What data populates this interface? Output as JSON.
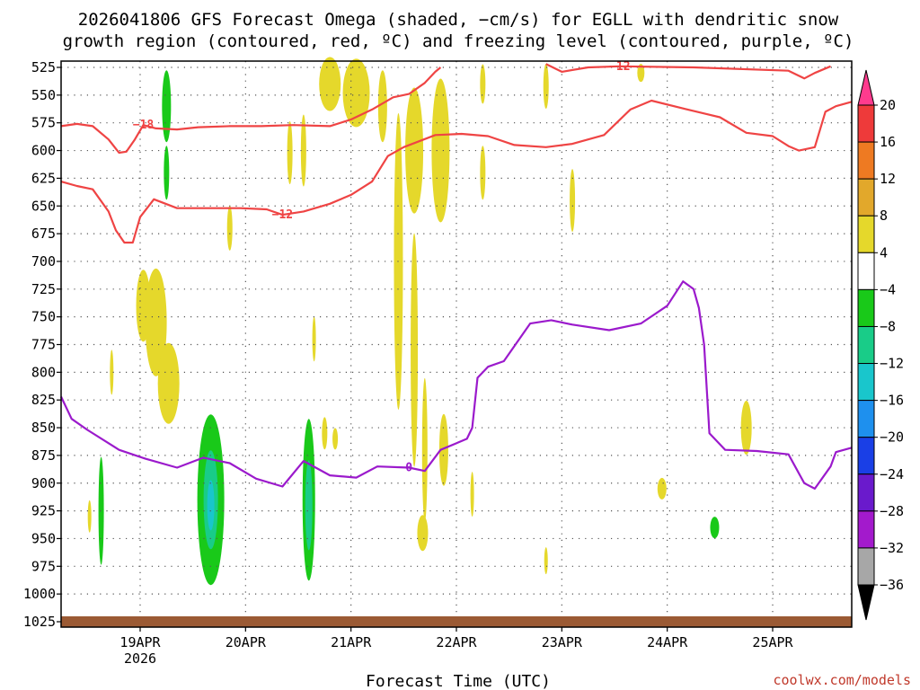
{
  "chart_data": {
    "type": "heatmap",
    "title_line1": "2026041806 GFS Forecast Omega (shaded, −cm/s) for EGLL with dendritic snow",
    "title_line2": "growth region (contoured, red, ºC) and freezing level (contoured, purple, ºC)",
    "xlabel": "Forecast Time (UTC)",
    "credit": "coolwx.com/models",
    "x_ticks": [
      {
        "t": 0.75,
        "label": "19APR"
      },
      {
        "t": 1.75,
        "label": "20APR"
      },
      {
        "t": 2.75,
        "label": "21APR"
      },
      {
        "t": 3.75,
        "label": "22APR"
      },
      {
        "t": 4.75,
        "label": "23APR"
      },
      {
        "t": 5.75,
        "label": "24APR"
      },
      {
        "t": 6.75,
        "label": "25APR"
      }
    ],
    "x_year_label": "2026",
    "xlim": [
      0,
      7.5
    ],
    "y_ticks": [
      525,
      550,
      575,
      600,
      625,
      650,
      675,
      700,
      725,
      750,
      775,
      800,
      825,
      850,
      875,
      900,
      925,
      950,
      975,
      1000,
      1025
    ],
    "ylim": [
      1025,
      525
    ],
    "colorbar": {
      "labels": [
        "20",
        "16",
        "12",
        "8",
        "4",
        "−4",
        "−8",
        "−12",
        "−16",
        "−20",
        "−24",
        "−28",
        "−32",
        "−36"
      ],
      "colors": [
        "#ff3b8e",
        "#ee3a3a",
        "#ee7a22",
        "#e2a82b",
        "#e5d82b",
        "#ffffff",
        "#19c919",
        "#19cc88",
        "#19c6cc",
        "#1e90ee",
        "#1a3fe6",
        "#6a1acc",
        "#a31acc",
        "#a7a7a7",
        "#000000"
      ]
    },
    "contours": [
      {
        "name": "−18 °C",
        "color": "#ef4444",
        "label": "−18",
        "points": [
          [
            0,
            578
          ],
          [
            0.15,
            576
          ],
          [
            0.3,
            578
          ],
          [
            0.45,
            590
          ],
          [
            0.55,
            602
          ],
          [
            0.62,
            601
          ],
          [
            0.7,
            590
          ],
          [
            0.78,
            577
          ],
          [
            0.9,
            580
          ],
          [
            1.1,
            581
          ],
          [
            1.3,
            579
          ],
          [
            1.6,
            578
          ],
          [
            1.9,
            578
          ],
          [
            2.2,
            577
          ],
          [
            2.55,
            578
          ],
          [
            2.75,
            572
          ],
          [
            2.95,
            563
          ],
          [
            3.15,
            552
          ],
          [
            3.3,
            549
          ],
          [
            3.45,
            539
          ],
          [
            3.55,
            529
          ],
          [
            3.6,
            525
          ]
        ]
      },
      {
        "name": "−12 °C lower",
        "color": "#ef4444",
        "label": "−12",
        "points": [
          [
            0,
            628
          ],
          [
            0.15,
            632
          ],
          [
            0.3,
            635
          ],
          [
            0.45,
            655
          ],
          [
            0.52,
            672
          ],
          [
            0.6,
            683
          ],
          [
            0.68,
            683
          ],
          [
            0.75,
            660
          ],
          [
            0.88,
            644
          ],
          [
            1.1,
            652
          ],
          [
            1.4,
            652
          ],
          [
            1.7,
            652
          ],
          [
            1.95,
            653
          ],
          [
            2.1,
            658
          ],
          [
            2.3,
            655
          ],
          [
            2.55,
            648
          ],
          [
            2.75,
            640
          ],
          [
            2.95,
            628
          ],
          [
            3.1,
            605
          ],
          [
            3.25,
            597
          ],
          [
            3.55,
            586
          ],
          [
            3.8,
            585
          ],
          [
            4.05,
            587
          ],
          [
            4.3,
            595
          ],
          [
            4.6,
            597
          ],
          [
            4.85,
            594
          ],
          [
            5.15,
            586
          ],
          [
            5.4,
            563
          ],
          [
            5.6,
            555
          ],
          [
            5.9,
            562
          ],
          [
            6.25,
            570
          ],
          [
            6.5,
            584
          ],
          [
            6.75,
            587
          ],
          [
            6.9,
            596
          ],
          [
            7.0,
            600
          ],
          [
            7.15,
            597
          ],
          [
            7.25,
            565
          ],
          [
            7.35,
            560
          ],
          [
            7.5,
            556
          ]
        ]
      },
      {
        "name": "−12 °C upper",
        "color": "#ef4444",
        "label": "−12",
        "points": [
          [
            4.6,
            522
          ],
          [
            4.75,
            529
          ],
          [
            5.0,
            525
          ],
          [
            5.3,
            524
          ],
          [
            6.0,
            525
          ],
          [
            6.9,
            528
          ],
          [
            7.05,
            535
          ],
          [
            7.15,
            530
          ],
          [
            7.3,
            524
          ]
        ]
      },
      {
        "name": "0 °C freezing level",
        "color": "#9b1acc",
        "label": "0",
        "points": [
          [
            0,
            822
          ],
          [
            0.1,
            842
          ],
          [
            0.25,
            852
          ],
          [
            0.55,
            870
          ],
          [
            0.8,
            878
          ],
          [
            1.1,
            886
          ],
          [
            1.35,
            877
          ],
          [
            1.6,
            882
          ],
          [
            1.85,
            896
          ],
          [
            2.1,
            903
          ],
          [
            2.3,
            880
          ],
          [
            2.55,
            893
          ],
          [
            2.8,
            895
          ],
          [
            3.0,
            885
          ],
          [
            3.3,
            886
          ],
          [
            3.45,
            889
          ],
          [
            3.6,
            870
          ],
          [
            3.85,
            860
          ],
          [
            3.9,
            850
          ],
          [
            3.95,
            805
          ],
          [
            4.05,
            795
          ],
          [
            4.2,
            790
          ],
          [
            4.45,
            756
          ],
          [
            4.65,
            753
          ],
          [
            4.85,
            757
          ],
          [
            5.2,
            762
          ],
          [
            5.5,
            756
          ],
          [
            5.75,
            740
          ],
          [
            5.9,
            718
          ],
          [
            6.0,
            725
          ],
          [
            6.05,
            742
          ],
          [
            6.1,
            775
          ],
          [
            6.15,
            855
          ],
          [
            6.3,
            870
          ],
          [
            6.6,
            871
          ],
          [
            6.9,
            874
          ],
          [
            7.05,
            900
          ],
          [
            7.15,
            905
          ],
          [
            7.3,
            885
          ],
          [
            7.35,
            872
          ],
          [
            7.5,
            868
          ]
        ]
      }
    ],
    "shaded": [
      {
        "value": "4",
        "color": "#e5d82b",
        "region": "yellow narrow streaks 19APR-22APR"
      },
      {
        "value": "-4",
        "color": "#19c919",
        "region": "green low-level cores near 20APR and 21APR"
      },
      {
        "value": "-8",
        "color": "#19cc88",
        "region": "teal cores near 20APR and 21APR"
      },
      {
        "value": "-12",
        "color": "#19c6cc",
        "region": "inner core near 20APR"
      }
    ]
  }
}
